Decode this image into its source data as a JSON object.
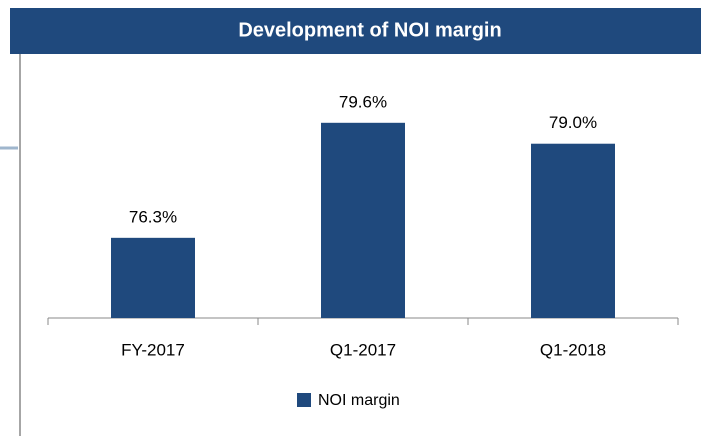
{
  "chart_data": {
    "type": "bar",
    "title": "Development of NOI margin",
    "categories": [
      "FY-2017",
      "Q1-2017",
      "Q1-2018"
    ],
    "series": [
      {
        "name": "NOI margin",
        "color": "#1f497d",
        "values": [
          76.3,
          79.6,
          79.0
        ],
        "value_labels": [
          "76.3%",
          "79.6%",
          "79.0%"
        ]
      }
    ],
    "ylim": [
      74,
      81
    ],
    "legend": "bottom"
  }
}
